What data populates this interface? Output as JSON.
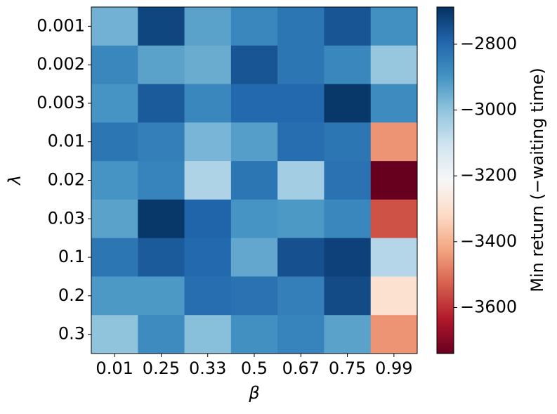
{
  "chart_data": {
    "type": "heatmap",
    "x_label": "β",
    "y_label": "λ",
    "x_categories": [
      "0.01",
      "0.25",
      "0.33",
      "0.5",
      "0.67",
      "0.75",
      "0.99"
    ],
    "y_categories": [
      "0.001",
      "0.002",
      "0.003",
      "0.01",
      "0.02",
      "0.03",
      "0.1",
      "0.2",
      "0.3"
    ],
    "values": [
      [
        -2960,
        -2730,
        -2930,
        -2870,
        -2830,
        -2760,
        -2890
      ],
      [
        -2870,
        -2930,
        -2950,
        -2760,
        -2830,
        -2870,
        -3010
      ],
      [
        -2900,
        -2770,
        -2870,
        -2800,
        -2800,
        -2700,
        -2880
      ],
      [
        -2830,
        -2850,
        -2970,
        -2920,
        -2810,
        -2830,
        -3450
      ],
      [
        -2900,
        -2860,
        -3050,
        -2830,
        -3030,
        -2820,
        -3740
      ],
      [
        -2930,
        -2700,
        -2790,
        -2900,
        -2910,
        -2870,
        -3550
      ],
      [
        -2830,
        -2770,
        -2800,
        -2940,
        -2750,
        -2720,
        -3060
      ],
      [
        -2910,
        -2910,
        -2810,
        -2820,
        -2850,
        -2740,
        -3300
      ],
      [
        -3000,
        -2880,
        -2990,
        -2890,
        -2860,
        -2930,
        -3450
      ]
    ],
    "colorbar_label": "Min return (−waiting time)",
    "zlim": [
      -3740,
      -2687
    ],
    "zticks": [
      {
        "value": -2800,
        "label": "−2800"
      },
      {
        "value": -3000,
        "label": "−3000"
      },
      {
        "value": -3200,
        "label": "−3200"
      },
      {
        "value": -3400,
        "label": "−3400"
      },
      {
        "value": -3600,
        "label": "−3600"
      }
    ],
    "colorscale": [
      "#67001f",
      "#b2182b",
      "#d6604d",
      "#f4a582",
      "#fddbc7",
      "#f7f7f7",
      "#d1e5f0",
      "#92c5de",
      "#4393c3",
      "#2166ac",
      "#053061"
    ]
  }
}
